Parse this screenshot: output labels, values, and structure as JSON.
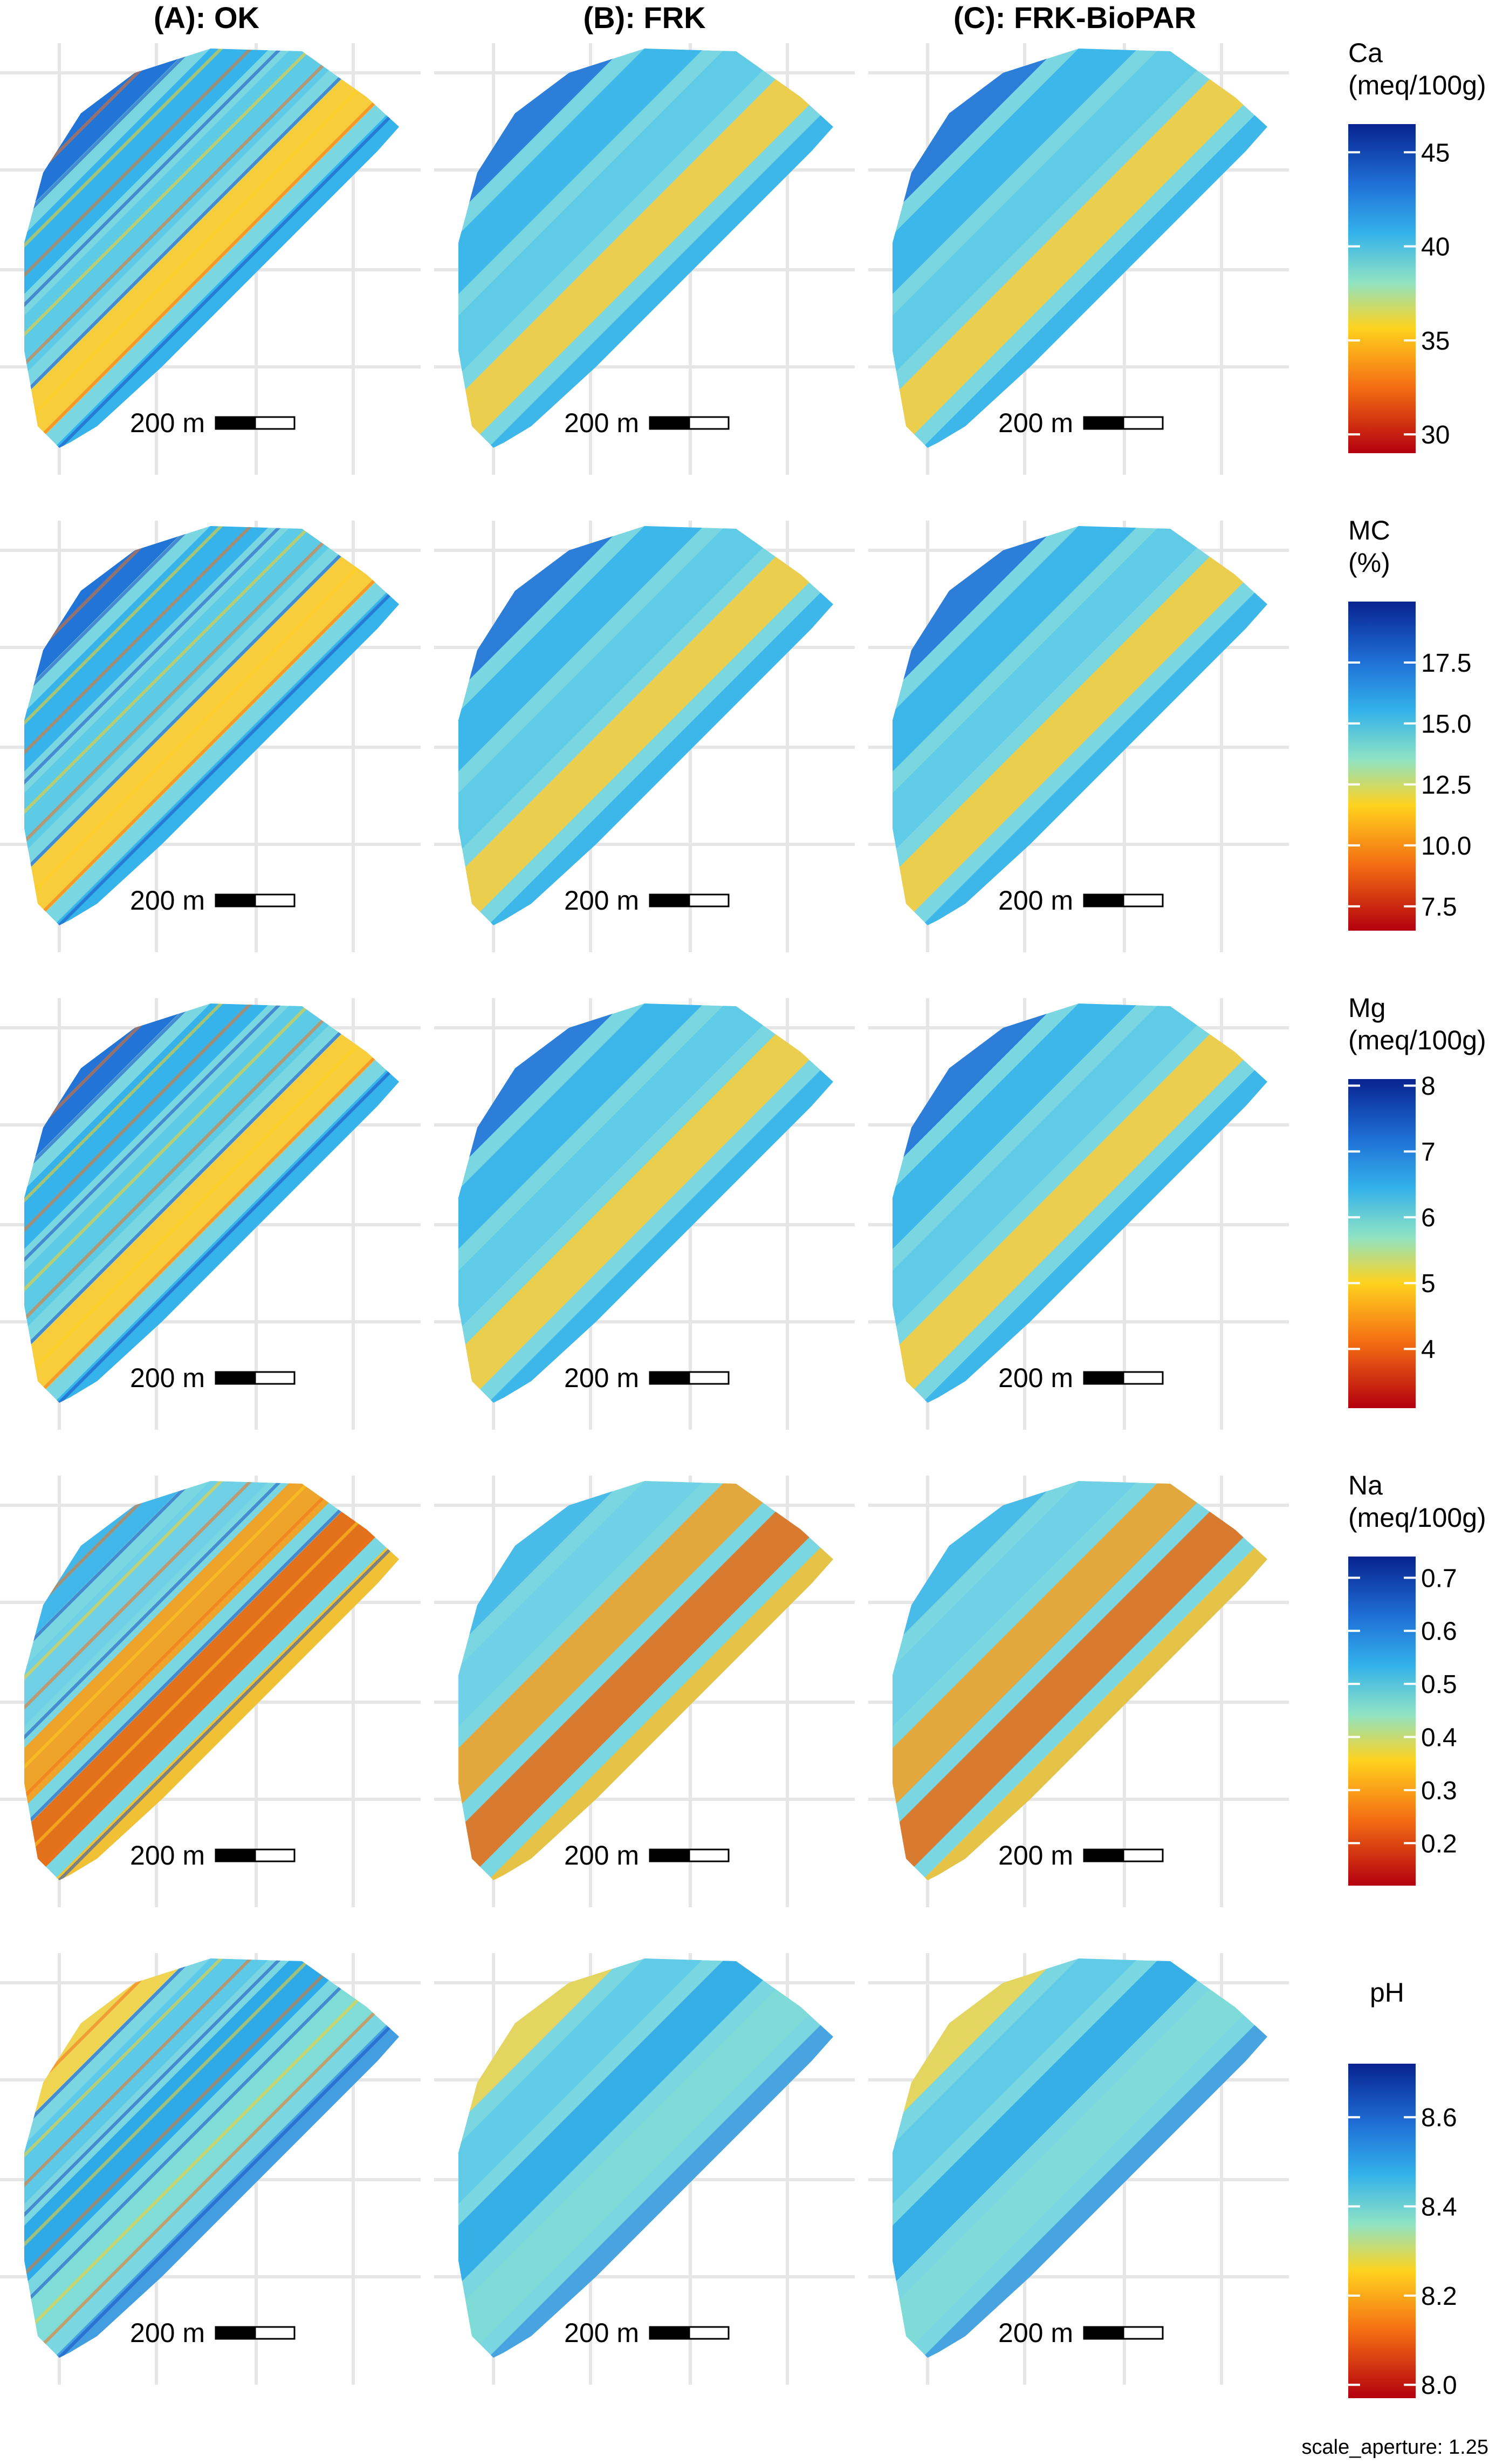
{
  "columns": [
    "(A): OK",
    "(B): FRK",
    "(C): FRK-BioPAR"
  ],
  "scalebar_label": "200 m",
  "footer": "scale_aperture: 1.25",
  "rows": [
    {
      "variable": "Ca",
      "unit": "(meq/100g)",
      "ticks": [
        "45",
        "40",
        "35",
        "30"
      ],
      "range": [
        29,
        46.5
      ],
      "tick_values": [
        45,
        40,
        35,
        30
      ]
    },
    {
      "variable": "MC",
      "unit": "(%)",
      "ticks": [
        "17.5",
        "15.0",
        "12.5",
        "10.0",
        "7.5"
      ],
      "range": [
        6.5,
        20
      ],
      "tick_values": [
        17.5,
        15.0,
        12.5,
        10.0,
        7.5
      ]
    },
    {
      "variable": "Mg",
      "unit": "(meq/100g)",
      "ticks": [
        "8",
        "7",
        "6",
        "5",
        "4"
      ],
      "range": [
        3.1,
        8.1
      ],
      "tick_values": [
        8,
        7,
        6,
        5,
        4
      ]
    },
    {
      "variable": "Na",
      "unit": "(meq/100g)",
      "ticks": [
        "0.7",
        "0.6",
        "0.5",
        "0.4",
        "0.3",
        "0.2"
      ],
      "range": [
        0.12,
        0.74
      ],
      "tick_values": [
        0.7,
        0.6,
        0.5,
        0.4,
        0.3,
        0.2
      ]
    },
    {
      "variable": "pH",
      "unit": "",
      "ticks": [
        "8.6",
        "8.4",
        "8.2",
        "8.0"
      ],
      "range": [
        7.97,
        8.72
      ],
      "tick_values": [
        8.6,
        8.4,
        8.2,
        8.0
      ]
    }
  ],
  "colors": {
    "scale_high": "#08238f",
    "scale_mid_high": "#33b1ea",
    "scale_mid": "#8fe3c4",
    "scale_mid_low": "#ffd21e",
    "scale_low": "#b3000f",
    "grid": "#e6e6e6"
  }
}
